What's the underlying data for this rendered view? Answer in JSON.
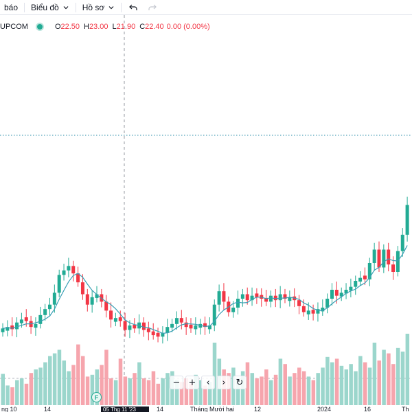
{
  "toolbar": {
    "alert_label": "báo",
    "chart_label": "Biểu đồ",
    "profile_label": "Hồ sơ"
  },
  "legend": {
    "symbol": "UPCOM",
    "open_key": "O",
    "open": "22.50",
    "high_key": "H",
    "high": "23.00",
    "low_key": "L",
    "low": "21.90",
    "close_key": "C",
    "close": "22.40",
    "change": "0.00 (0.00%)"
  },
  "controls": {
    "zoom_out": "−",
    "zoom_in": "+",
    "scroll_left": "‹",
    "scroll_right": "›",
    "reset": "↻"
  },
  "xaxis": {
    "ticks": [
      "ng 10",
      "14",
      "14",
      "Tháng Mười hai",
      "12",
      "2024",
      "16",
      "Th"
    ],
    "crosshair_label": "05 Thg 11 '23",
    "event_badge": "F"
  },
  "colors": {
    "up": "#22ab94",
    "down": "#f23645",
    "up_volume": "#9bd6cc",
    "down_volume": "#f6a5ad",
    "ma_line": "#3a9fb5",
    "accent": "#2962ff"
  },
  "chart_data": {
    "type": "candlestick",
    "price_range": [
      20.5,
      31.5
    ],
    "close_series": [
      22.0,
      22.1,
      21.95,
      22.4,
      22.6,
      22.5,
      22.1,
      22.3,
      22.9,
      23.3,
      23.6,
      24.4,
      25.6,
      25.9,
      26.2,
      25.7,
      25.1,
      24.3,
      23.6,
      24.1,
      24.3,
      23.8,
      23.2,
      22.6,
      22.7,
      22.5,
      21.9,
      22.2,
      22.0,
      22.4,
      21.9,
      21.75,
      21.55,
      21.45,
      21.7,
      22.1,
      22.3,
      22.7,
      22.4,
      22.1,
      22.0,
      22.2,
      22.3,
      22.1,
      22.2,
      23.6,
      24.5,
      23.8,
      23.1,
      23.4,
      24.0,
      24.3,
      23.9,
      24.2,
      24.1,
      24.0,
      23.8,
      24.2,
      23.9,
      24.3,
      24.0,
      24.1,
      23.9,
      23.5,
      23.1,
      23.2,
      23.0,
      23.3,
      23.4,
      24.0,
      24.6,
      24.2,
      24.4,
      24.6,
      24.8,
      25.2,
      25.4,
      25.3,
      26.4,
      27.3,
      26.1,
      27.3,
      26.3,
      25.8,
      27.2,
      28.3,
      30.3
    ],
    "up_down": [
      "u",
      "u",
      "d",
      "u",
      "u",
      "d",
      "d",
      "u",
      "u",
      "u",
      "u",
      "u",
      "u",
      "u",
      "u",
      "d",
      "d",
      "d",
      "d",
      "u",
      "u",
      "d",
      "d",
      "d",
      "u",
      "d",
      "d",
      "u",
      "d",
      "u",
      "d",
      "d",
      "d",
      "d",
      "u",
      "u",
      "u",
      "u",
      "d",
      "d",
      "d",
      "u",
      "u",
      "d",
      "u",
      "u",
      "u",
      "d",
      "d",
      "u",
      "u",
      "u",
      "d",
      "u",
      "d",
      "d",
      "d",
      "u",
      "d",
      "u",
      "d",
      "u",
      "d",
      "d",
      "d",
      "u",
      "d",
      "u",
      "u",
      "u",
      "u",
      "d",
      "u",
      "u",
      "u",
      "u",
      "u",
      "d",
      "u",
      "u",
      "d",
      "u",
      "d",
      "d",
      "u",
      "u",
      "u"
    ],
    "volume": [
      35,
      22,
      20,
      28,
      30,
      24,
      36,
      40,
      42,
      48,
      55,
      58,
      62,
      50,
      38,
      45,
      68,
      55,
      32,
      34,
      40,
      45,
      62,
      30,
      28,
      52,
      32,
      30,
      36,
      48,
      30,
      28,
      38,
      24,
      30,
      36,
      38,
      28,
      26,
      30,
      24,
      34,
      28,
      22,
      26,
      70,
      52,
      40,
      36,
      42,
      30,
      38,
      48,
      36,
      30,
      32,
      40,
      28,
      34,
      52,
      46,
      32,
      36,
      42,
      38,
      32,
      28,
      36,
      42,
      54,
      48,
      52,
      44,
      40,
      46,
      38,
      55,
      48,
      42,
      70,
      50,
      62,
      58,
      46,
      64,
      60,
      80
    ],
    "volume_down": [
      "u",
      "u",
      "d",
      "u",
      "u",
      "d",
      "d",
      "u",
      "u",
      "u",
      "u",
      "u",
      "u",
      "u",
      "u",
      "d",
      "d",
      "d",
      "d",
      "u",
      "u",
      "d",
      "d",
      "d",
      "u",
      "d",
      "d",
      "u",
      "d",
      "u",
      "d",
      "d",
      "d",
      "d",
      "u",
      "u",
      "u",
      "u",
      "d",
      "d",
      "d",
      "u",
      "u",
      "d",
      "u",
      "u",
      "u",
      "d",
      "d",
      "u",
      "u",
      "u",
      "d",
      "u",
      "d",
      "d",
      "d",
      "u",
      "d",
      "u",
      "d",
      "u",
      "d",
      "d",
      "d",
      "u",
      "d",
      "u",
      "u",
      "u",
      "u",
      "d",
      "u",
      "u",
      "u",
      "u",
      "u",
      "d",
      "u",
      "u",
      "d",
      "u",
      "d",
      "d",
      "u",
      "u",
      "u"
    ]
  }
}
